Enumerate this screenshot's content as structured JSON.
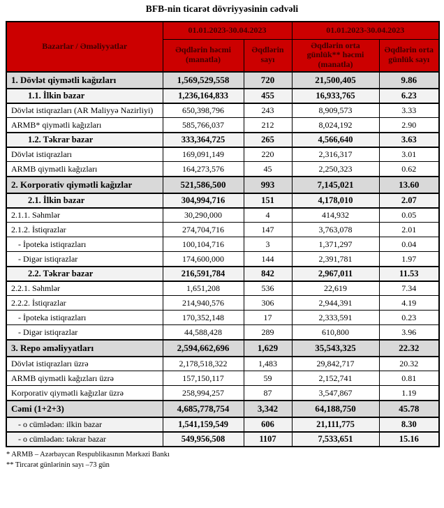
{
  "page_title": "BFB-nin ticarət dövriyyəsinin cədvəli",
  "colors": {
    "header_bg": "#cc0000",
    "header_text": "#400000",
    "section_bg": "#d9d9d9",
    "subsection_bg": "#f2f2f2",
    "border": "#000000"
  },
  "table": {
    "header": {
      "col_markets": "Bazarlar / Əməliyyatlar",
      "period1": "01.01.2023-30.04.2023",
      "period2": "01.01.2023-30.04.2023",
      "col_volume": "Əqdlərin həcmi (manatla)",
      "col_count": "Əqdlərin sayı",
      "col_avg_volume": "Əqdlərin orta günlük** həcmi (manatla)",
      "col_avg_count": "Əqdlərin orta günlük sayı"
    },
    "rows": [
      {
        "level": "section",
        "label": "1. Dövlət qiymətli kağızları",
        "volume": "1,569,529,558",
        "count": "720",
        "avg_volume": "21,500,405",
        "avg_count": "9.86"
      },
      {
        "level": "subsection",
        "label": "1.1. İlkin bazar",
        "volume": "1,236,164,833",
        "count": "455",
        "avg_volume": "16,933,765",
        "avg_count": "6.23"
      },
      {
        "level": "item",
        "label": "Dövlət istiqrazları (AR Maliyyə Nazirliyi)",
        "volume": "650,398,796",
        "count": "243",
        "avg_volume": "8,909,573",
        "avg_count": "3.33"
      },
      {
        "level": "item",
        "label": "ARMB* qiymətli kağızları",
        "volume": "585,766,037",
        "count": "212",
        "avg_volume": "8,024,192",
        "avg_count": "2.90"
      },
      {
        "level": "subsection",
        "label": "1.2. Təkrar bazar",
        "volume": "333,364,725",
        "count": "265",
        "avg_volume": "4,566,640",
        "avg_count": "3.63"
      },
      {
        "level": "item",
        "label": "Dövlət istiqrazları",
        "volume": "169,091,149",
        "count": "220",
        "avg_volume": "2,316,317",
        "avg_count": "3.01"
      },
      {
        "level": "item",
        "label": "ARMB qiymətli kağızları",
        "volume": "164,273,576",
        "count": "45",
        "avg_volume": "2,250,323",
        "avg_count": "0.62"
      },
      {
        "level": "section",
        "label": "2. Korporativ qiymətli kağızlar",
        "volume": "521,586,500",
        "count": "993",
        "avg_volume": "7,145,021",
        "avg_count": "13.60"
      },
      {
        "level": "subsection",
        "label": "2.1. İlkin bazar",
        "volume": "304,994,716",
        "count": "151",
        "avg_volume": "4,178,010",
        "avg_count": "2.07"
      },
      {
        "level": "item",
        "label": "2.1.1. Səhmlər",
        "volume": "30,290,000",
        "count": "4",
        "avg_volume": "414,932",
        "avg_count": "0.05"
      },
      {
        "level": "item",
        "label": "2.1.2. İstiqrazlar",
        "volume": "274,704,716",
        "count": "147",
        "avg_volume": "3,763,078",
        "avg_count": "2.01"
      },
      {
        "level": "sub-item",
        "label": "- İpoteka istiqrazları",
        "volume": "100,104,716",
        "count": "3",
        "avg_volume": "1,371,297",
        "avg_count": "0.04"
      },
      {
        "level": "sub-item",
        "label": "- Digər istiqrazlar",
        "volume": "174,600,000",
        "count": "144",
        "avg_volume": "2,391,781",
        "avg_count": "1.97"
      },
      {
        "level": "subsection",
        "label": "2.2. Təkrar bazar",
        "volume": "216,591,784",
        "count": "842",
        "avg_volume": "2,967,011",
        "avg_count": "11.53"
      },
      {
        "level": "item",
        "label": "2.2.1. Səhmlər",
        "volume": "1,651,208",
        "count": "536",
        "avg_volume": "22,619",
        "avg_count": "7.34"
      },
      {
        "level": "item",
        "label": "2.2.2. İstiqrazlar",
        "volume": "214,940,576",
        "count": "306",
        "avg_volume": "2,944,391",
        "avg_count": "4.19"
      },
      {
        "level": "sub-item",
        "label": "- İpoteka istiqrazları",
        "volume": "170,352,148",
        "count": "17",
        "avg_volume": "2,333,591",
        "avg_count": "0.23"
      },
      {
        "level": "sub-item",
        "label": "- Digər istiqrazlar",
        "volume": "44,588,428",
        "count": "289",
        "avg_volume": "610,800",
        "avg_count": "3.96"
      },
      {
        "level": "section",
        "label": "3. Repo əməliyyatları",
        "volume": "2,594,662,696",
        "count": "1,629",
        "avg_volume": "35,543,325",
        "avg_count": "22.32"
      },
      {
        "level": "item",
        "label": "Dövlət istiqrazları üzrə",
        "volume": "2,178,518,322",
        "count": "1,483",
        "avg_volume": "29,842,717",
        "avg_count": "20.32"
      },
      {
        "level": "item",
        "label": "ARMB qiymətli kağızları üzrə",
        "volume": "157,150,117",
        "count": "59",
        "avg_volume": "2,152,741",
        "avg_count": "0.81"
      },
      {
        "level": "item",
        "label": "Korporativ qiymətli kağızlar üzrə",
        "volume": "258,994,257",
        "count": "87",
        "avg_volume": "3,547,867",
        "avg_count": "1.19"
      },
      {
        "level": "section",
        "label": "Cəmi (1+2+3)",
        "volume": "4,685,778,754",
        "count": "3,342",
        "avg_volume": "64,188,750",
        "avg_count": "45.78"
      },
      {
        "level": "total-detail",
        "label": "- o cümlədən: ilkin bazar",
        "volume": "1,541,159,549",
        "count": "606",
        "avg_volume": "21,111,775",
        "avg_count": "8.30"
      },
      {
        "level": "total-detail",
        "label": "- o cümlədən: təkrar bazar",
        "volume": "549,956,508",
        "count": "1107",
        "avg_volume": "7,533,651",
        "avg_count": "15.16"
      }
    ]
  },
  "footnotes": [
    "* ARMB – Azərbaycan Respublikasının Mərkəzi Bankı",
    "** Tircarət günlərinin sayı –73 gün"
  ]
}
